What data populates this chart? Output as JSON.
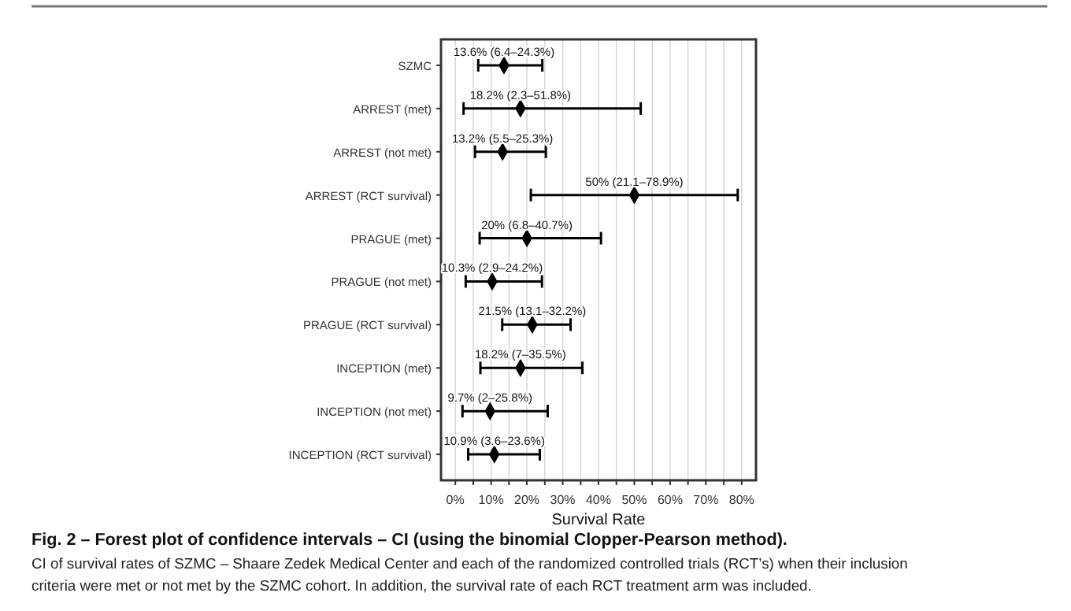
{
  "chart_data": {
    "type": "scatter",
    "orientation": "horizontal",
    "title": "Fig. 2 – Forest plot of confidence intervals – CI (using the binomial Clopper-Pearson method).",
    "subtitle": "CI of survival rates of SZMC – Shaare Zedek Medical Center and each of the randomized controlled trials (RCT’s) when their inclusion criteria were met or not met by the SZMC cohort. In addition, the survival rate of each RCT treatment arm was included.",
    "xlabel": "Survival Rate",
    "categories": [
      "SZMC",
      "ARREST (met)",
      "ARREST (not met)",
      "ARREST (RCT survival)",
      "PRAGUE (met)",
      "PRAGUE (not met)",
      "PRAGUE (RCT survival)",
      "INCEPTION (met)",
      "INCEPTION (not met)",
      "INCEPTION (RCT survival)"
    ],
    "series": [
      {
        "color": "#000000",
        "values": [
          13.6,
          18.2,
          13.2,
          50,
          20,
          10.3,
          21.5,
          18.2,
          9.7,
          10.9
        ],
        "errors": [
          [
            6.4,
            24.3
          ],
          [
            2.3,
            51.8
          ],
          [
            5.5,
            25.3
          ],
          [
            21.1,
            78.9
          ],
          [
            6.8,
            40.7
          ],
          [
            2.9,
            24.2
          ],
          [
            13.1,
            32.2
          ],
          [
            7,
            35.5
          ],
          [
            2,
            25.8
          ],
          [
            3.6,
            23.6
          ]
        ],
        "value_labels": [
          "13.6% (6.4–24.3%)",
          "18.2% (2.3–51.8%)",
          "13.2% (5.5–25.3%)",
          "50% (21.1–78.9%)",
          "20% (6.8–40.7%)",
          "10.3% (2.9–24.2%)",
          "21.5% (13.1–32.2%)",
          "18.2% (7–35.5%)",
          "9.7% (2–25.8%)",
          "10.9% (3.6–23.6%)"
        ]
      }
    ],
    "xlim": [
      -4,
      84
    ],
    "xticks": [
      {
        "value": 0,
        "label": "0%"
      },
      {
        "value": 5,
        "label": null
      },
      {
        "value": 10,
        "label": "10%"
      },
      {
        "value": 15,
        "label": null
      },
      {
        "value": 20,
        "label": "20%"
      },
      {
        "value": 25,
        "label": null
      },
      {
        "value": 30,
        "label": "30%"
      },
      {
        "value": 35,
        "label": null
      },
      {
        "value": 40,
        "label": "40%"
      },
      {
        "value": 45,
        "label": null
      },
      {
        "value": 50,
        "label": "50%"
      },
      {
        "value": 55,
        "label": null
      },
      {
        "value": 60,
        "label": "60%"
      },
      {
        "value": 65,
        "label": null
      },
      {
        "value": 70,
        "label": "70%"
      },
      {
        "value": 75,
        "label": null
      },
      {
        "value": 80,
        "label": "80%"
      }
    ],
    "grid": "x",
    "marker": "diamond"
  }
}
